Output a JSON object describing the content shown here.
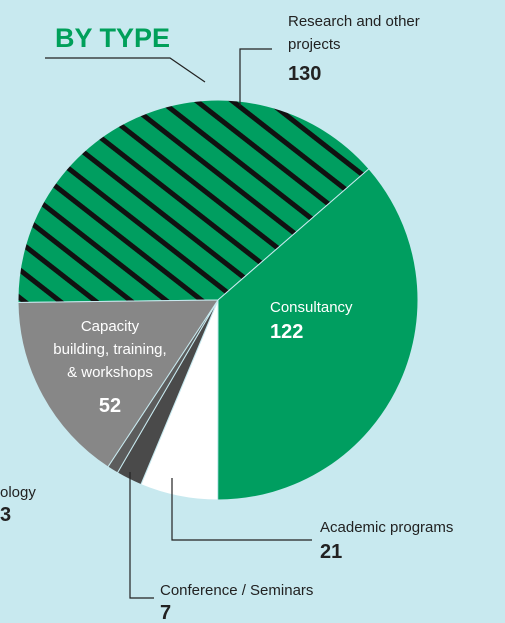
{
  "chart_data": {
    "type": "pie",
    "title": "BY TYPE",
    "categories": [
      [
        "Research and other",
        "projects"
      ],
      [
        "Consultancy"
      ],
      [
        "Academic programs"
      ],
      [
        "Conference / Seminars"
      ],
      [
        "ology"
      ],
      [
        "Capacity",
        "building, training,",
        "& workshops"
      ]
    ],
    "values": [
      130,
      122,
      21,
      7,
      3,
      52
    ],
    "colors": [
      "#009e60",
      "#009e60",
      "#ffffff",
      "#4a4a4a",
      "#5c5c5c",
      "#878787"
    ],
    "hatched": [
      true,
      false,
      false,
      false,
      false,
      false
    ]
  }
}
